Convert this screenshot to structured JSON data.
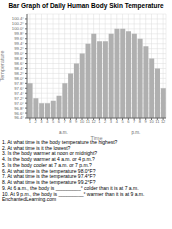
{
  "chart_data": {
    "type": "bar",
    "title": "Bar Graph of Daily Human Body Skin Temperature",
    "xlabel": "Time",
    "ylabel": "Temperature",
    "categories": [
      "1",
      "2",
      "3",
      "4",
      "5",
      "6",
      "7",
      "8",
      "9",
      "10",
      "11",
      "12",
      "1",
      "2",
      "3",
      "4",
      "5",
      "6",
      "7",
      "8",
      "9",
      "10",
      "11",
      "12"
    ],
    "values": [
      97.8,
      97.2,
      97.0,
      97.0,
      97.1,
      97.3,
      97.8,
      98.2,
      98.6,
      99.0,
      99.4,
      99.8,
      99.5,
      99.5,
      99.8,
      100.0,
      100.0,
      99.9,
      99.8,
      99.6,
      99.3,
      98.8,
      98.4,
      97.6
    ],
    "color": "#b0b0b0",
    "ylim": [
      96.4,
      100.6
    ],
    "yticks": [
      {
        "value": 96.4,
        "label": "96.4°"
      },
      {
        "value": 96.6,
        "label": "96.6°"
      },
      {
        "value": 96.8,
        "label": "96.8°"
      },
      {
        "value": 97.0,
        "label": "97.0°"
      },
      {
        "value": 97.2,
        "label": "97.2°"
      },
      {
        "value": 97.4,
        "label": "97.4°"
      },
      {
        "value": 97.6,
        "label": "97.6°"
      },
      {
        "value": 97.8,
        "label": "97.8°"
      },
      {
        "value": 98.0,
        "label": "98.0°"
      },
      {
        "value": 98.2,
        "label": "98.2°"
      },
      {
        "value": 98.4,
        "label": "98.4°"
      },
      {
        "value": 98.6,
        "label": "98.6°"
      },
      {
        "value": 98.8,
        "label": "98.8°"
      },
      {
        "value": 99.0,
        "label": "99.0°"
      },
      {
        "value": 99.2,
        "label": "99.2°"
      },
      {
        "value": 99.4,
        "label": "99.4°"
      },
      {
        "value": 99.6,
        "label": "99.6°"
      },
      {
        "value": 99.8,
        "label": "99.8°"
      },
      {
        "value": 100.0,
        "label": "100.0°"
      },
      {
        "value": 100.2,
        "label": "100.2°"
      },
      {
        "value": 100.4,
        "label": "100.4°"
      }
    ],
    "grid": true,
    "annotations": [
      "a.m.",
      "p.m.",
      "1. At what time is the body temperature the highest?",
      "2. At what time is it the lowest?",
      "3. Is the body warmer at noon or midnight?",
      "4. Is the body warmer at 4 a.m. or 4 p.m.?",
      "5. Is the body cooler at 7 a.m. or 7 p.m.?",
      "6. At what time is the temperature 98.0°F?",
      "7. At what time is the temperature 97.4°F?",
      "8. At what time is the temperature 99.2°F?",
      "9. At 6 a.m., the body is _________° colder than it is at 7 a.m.",
      "10. At 9 p.m., the body is _________° warmer than it is at 9 a.m.",
      "EnchantedLearning.com"
    ]
  }
}
